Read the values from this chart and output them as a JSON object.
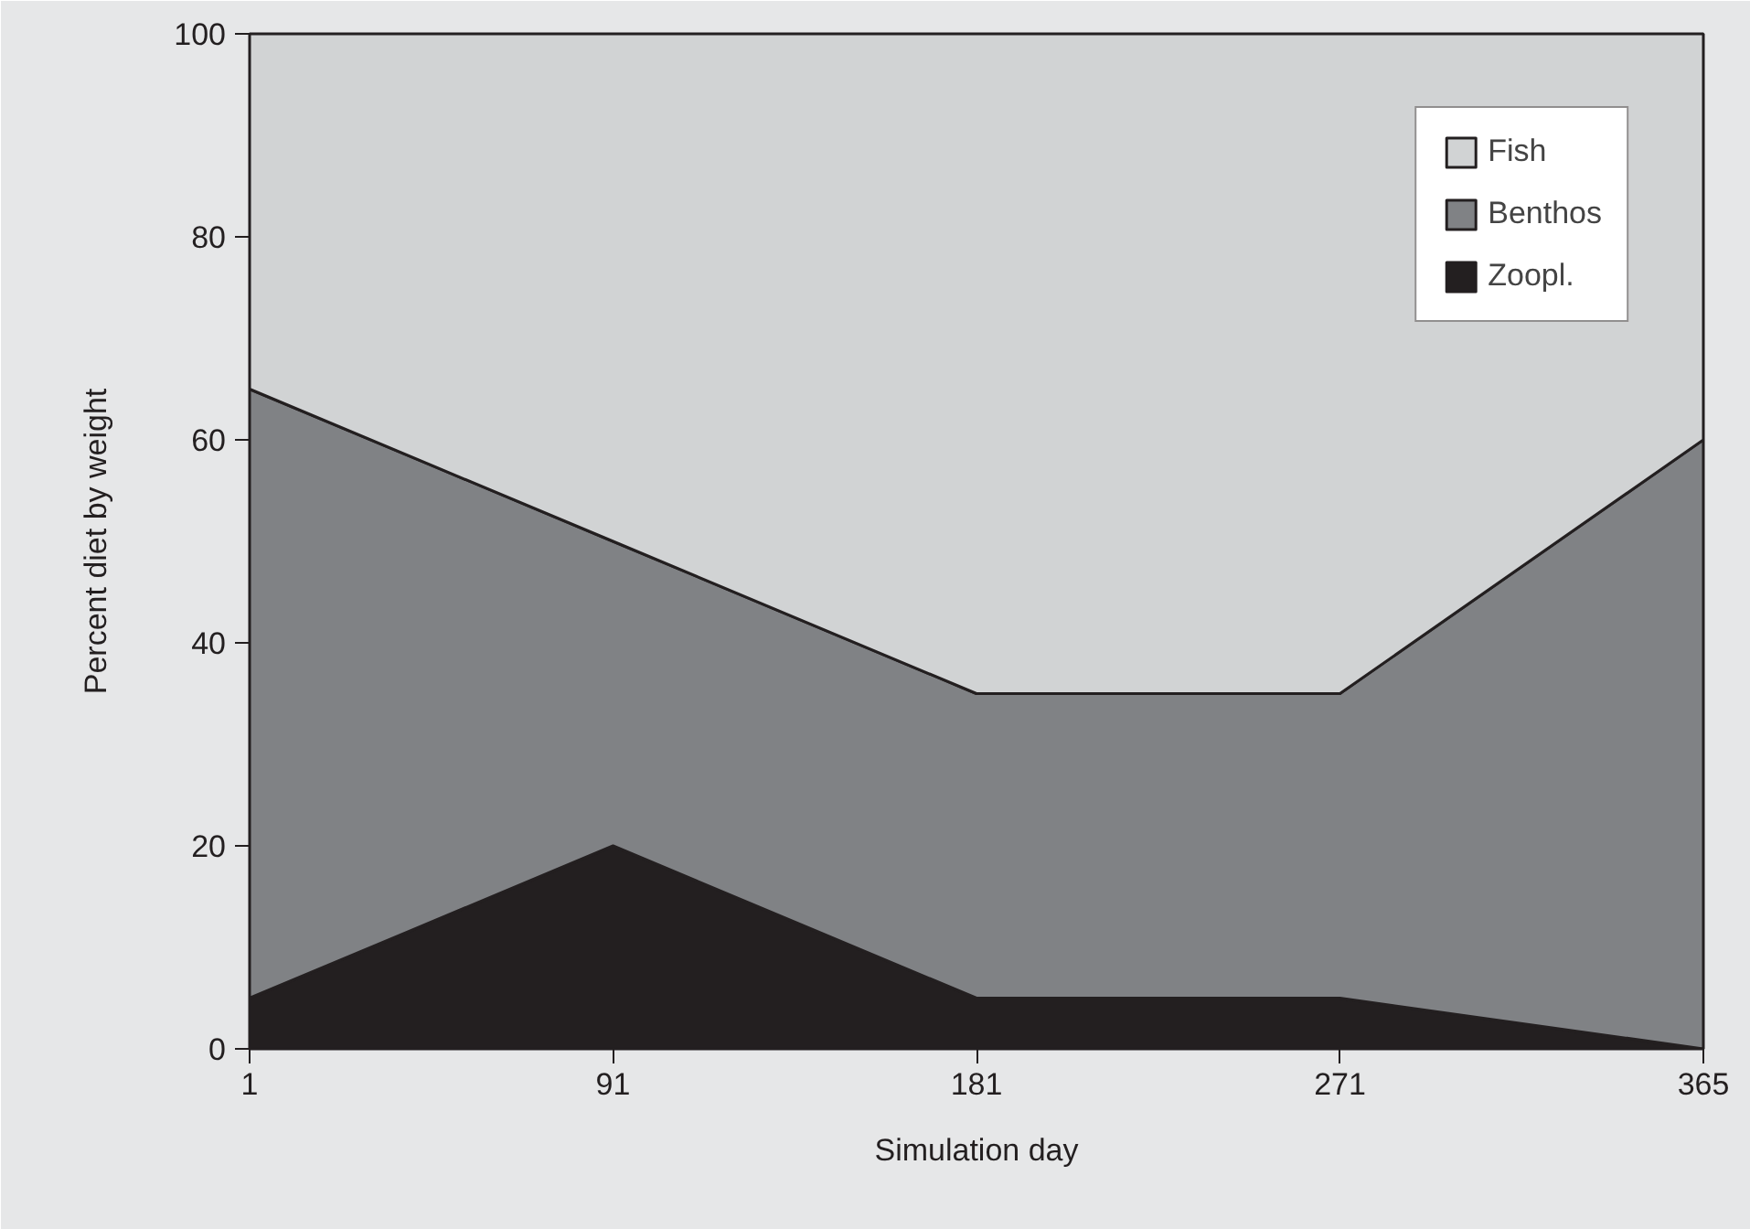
{
  "chart_data": {
    "type": "area",
    "stacked": true,
    "xlabel": "Simulation day",
    "ylabel": "Percent diet by weight",
    "categories": [
      "1",
      "91",
      "181",
      "271",
      "365"
    ],
    "series": [
      {
        "name": "Zoopl.",
        "color": "#231f20",
        "values": [
          5,
          20,
          5,
          5,
          0
        ]
      },
      {
        "name": "Benthos",
        "color": "#808285",
        "values": [
          60,
          30,
          30,
          30,
          60
        ]
      },
      {
        "name": "Fish",
        "color": "#d1d3d4",
        "values": [
          35,
          50,
          65,
          65,
          40
        ]
      }
    ],
    "ylim": [
      0,
      100
    ],
    "yticks": [
      0,
      20,
      40,
      60,
      80,
      100
    ],
    "legend": "top right"
  }
}
